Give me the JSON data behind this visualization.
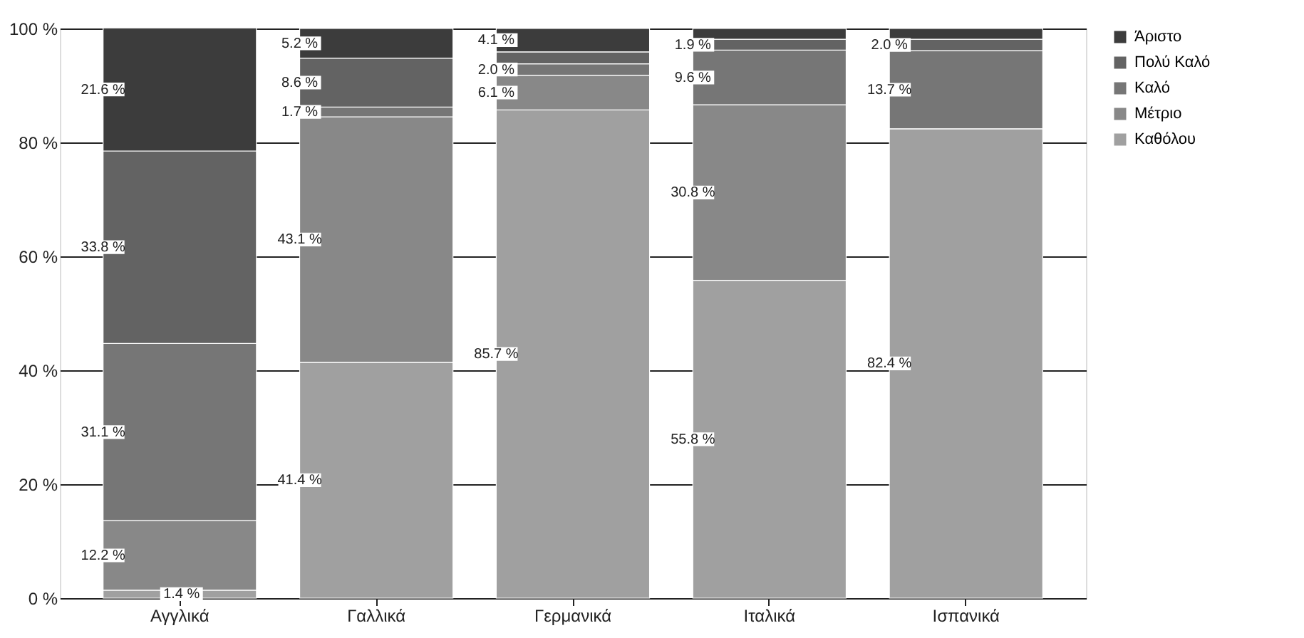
{
  "chart_data": {
    "type": "bar",
    "stacked": true,
    "categories": [
      "Αγγλικά",
      "Γαλλικά",
      "Γερμανικά",
      "Ιταλικά",
      "Ισπανικά"
    ],
    "series": [
      {
        "name": "Καθόλου",
        "color": "#a0a0a0",
        "values": [
          1.4,
          41.4,
          85.7,
          55.8,
          82.4
        ],
        "value_labels": [
          "1.4 %",
          "41.4 %",
          "85.7 %",
          "55.8 %",
          "82.4 %"
        ]
      },
      {
        "name": "Μέτριο",
        "color": "#888888",
        "values": [
          12.2,
          43.1,
          6.1,
          30.8,
          null
        ],
        "value_labels": [
          "12.2 %",
          "43.1 %",
          "6.1 %",
          "30.8 %",
          null
        ]
      },
      {
        "name": "Καλό",
        "color": "#767676",
        "values": [
          31.1,
          1.7,
          2.0,
          9.6,
          13.7
        ],
        "value_labels": [
          "31.1 %",
          "1.7 %",
          "2.0 %",
          "9.6 %",
          "13.7 %"
        ]
      },
      {
        "name": "Πολύ Καλό",
        "color": "#636363",
        "values": [
          33.8,
          8.6,
          2.1,
          1.9,
          2.0
        ],
        "value_labels": [
          "33.8 %",
          "8.6 %",
          null,
          "1.9 %",
          "2.0 %"
        ]
      },
      {
        "name": "Άριστο",
        "color": "#3c3c3c",
        "values": [
          21.6,
          5.2,
          4.1,
          1.9,
          1.9
        ],
        "value_labels": [
          "21.6 %",
          "5.2 %",
          "4.1 %",
          null,
          null
        ]
      }
    ],
    "ylim": [
      0,
      100
    ],
    "yticks": [
      {
        "value": 0,
        "label": "0 %"
      },
      {
        "value": 20,
        "label": "20 %"
      },
      {
        "value": 40,
        "label": "40 %"
      },
      {
        "value": 60,
        "label": "60 %"
      },
      {
        "value": 80,
        "label": "80 %"
      },
      {
        "value": 100,
        "label": "100 %"
      }
    ],
    "grid": "y",
    "legend": "right"
  }
}
